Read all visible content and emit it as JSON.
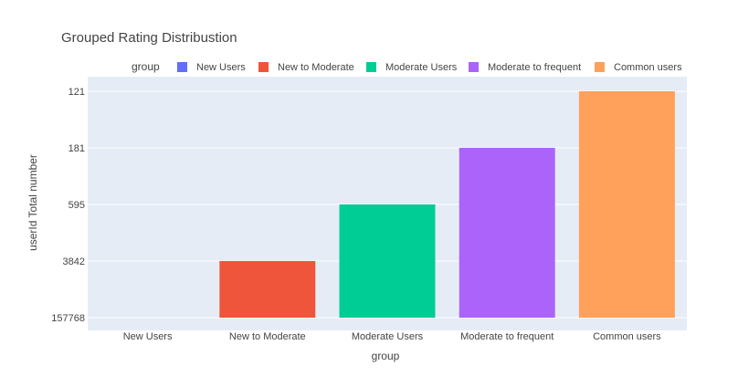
{
  "chart_data": {
    "type": "bar",
    "title": "Grouped Rating Distribustion",
    "xlabel": "group",
    "ylabel": "userId Total number",
    "legend_title": "group",
    "legend_position": "top",
    "grid": true,
    "y_axis_type": "category",
    "y_categories": [
      "157768",
      "3842",
      "595",
      "181",
      "121"
    ],
    "categories": [
      "New Users",
      "New to Moderate",
      "Moderate Users",
      "Moderate to frequent",
      "Common users"
    ],
    "series": [
      {
        "name": "New Users",
        "category": "New Users",
        "value": "157768",
        "color": "#636efa"
      },
      {
        "name": "New to Moderate",
        "category": "New to Moderate",
        "value": "3842",
        "color": "#ef553b"
      },
      {
        "name": "Moderate Users",
        "category": "Moderate Users",
        "value": "595",
        "color": "#00cc96"
      },
      {
        "name": "Moderate to frequent",
        "category": "Moderate to frequent",
        "value": "181",
        "color": "#ab63fa"
      },
      {
        "name": "Common users",
        "category": "Common users",
        "value": "121",
        "color": "#ffa15a"
      }
    ],
    "colors": {
      "plot_bg": "#e5ecf6",
      "grid": "#ffffff",
      "text": "#444444"
    }
  }
}
